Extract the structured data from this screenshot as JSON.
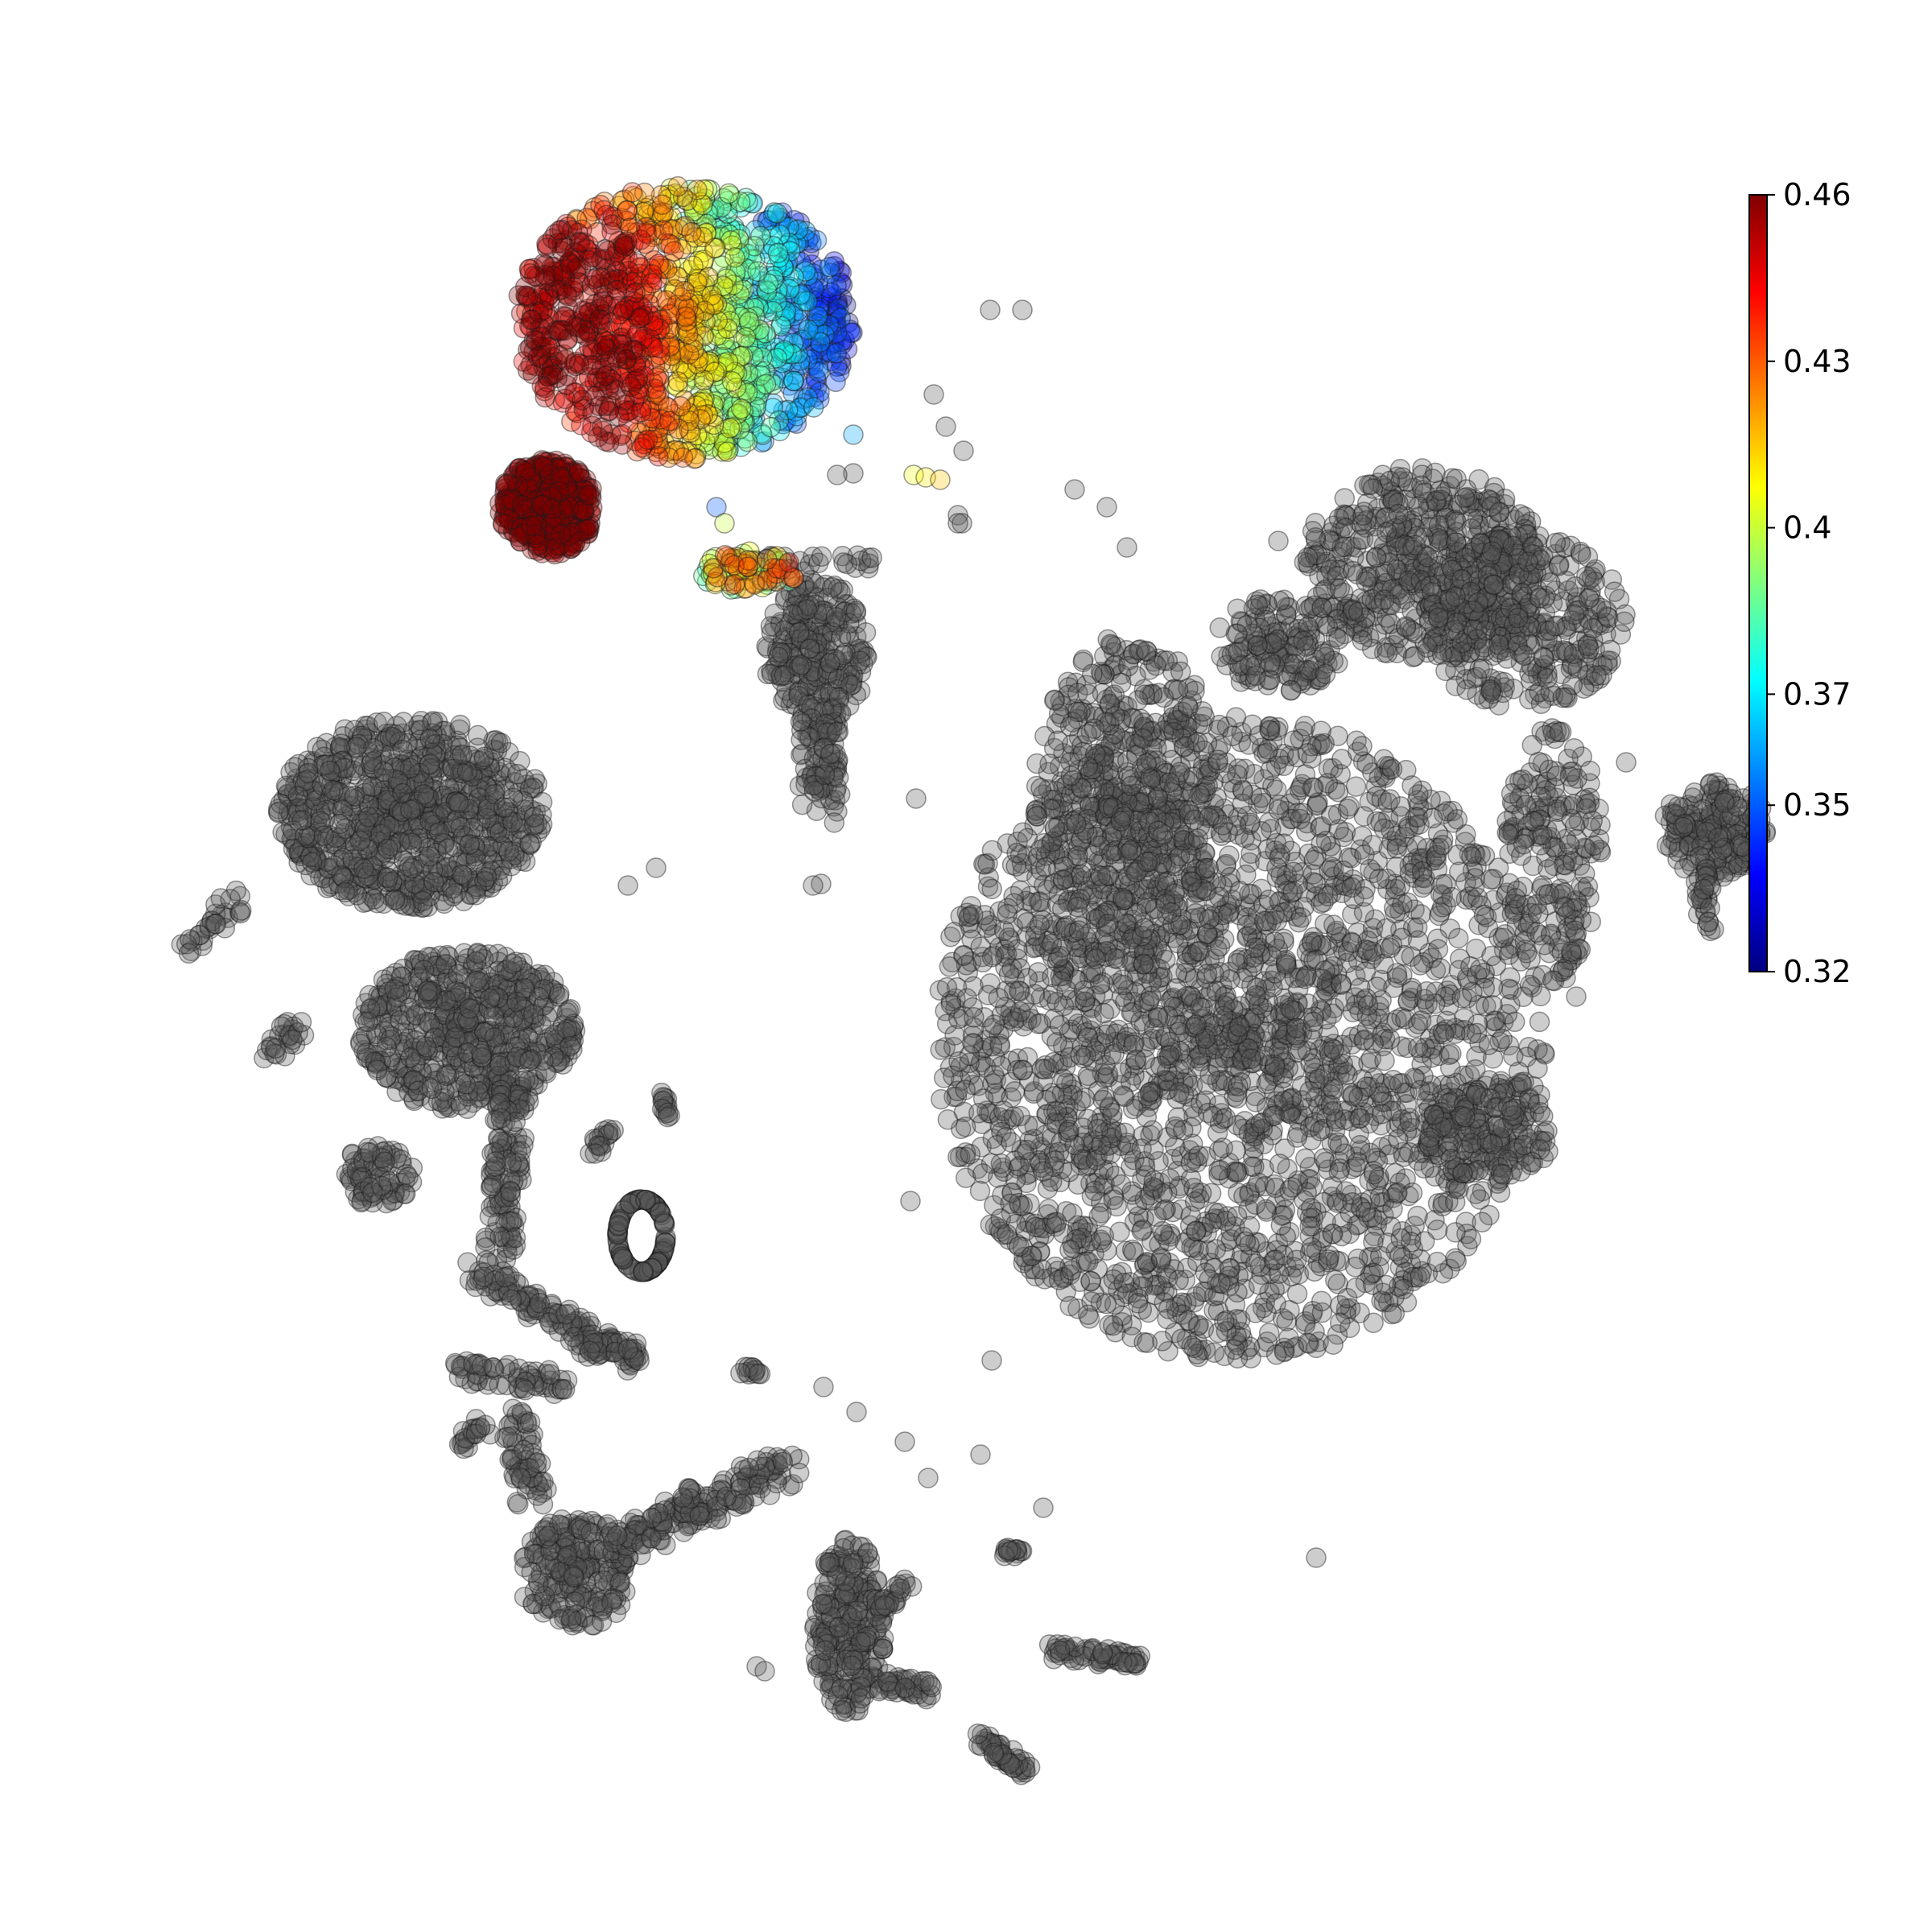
{
  "chart_data": {
    "type": "scatter",
    "title": "",
    "xlabel": "",
    "ylabel": "",
    "axes_visible": false,
    "background_point_color": "#5a5a5a",
    "colormap": "jet",
    "colorbar": {
      "placement": "right",
      "min": 0.32,
      "max": 0.46,
      "tick_labels": [
        "0.46",
        "0.43",
        "0.4",
        "0.37",
        "0.35",
        "0.32"
      ],
      "tick_values": [
        0.46,
        0.43,
        0.4,
        0.37,
        0.35,
        0.32
      ]
    },
    "highlighted_cluster": {
      "value_range": [
        0.32,
        0.46
      ],
      "high_region": "left",
      "low_region": "right edge"
    },
    "regions_note": "embedding of many point clusters; all clusters other than the upper-left one are shown in grey"
  }
}
